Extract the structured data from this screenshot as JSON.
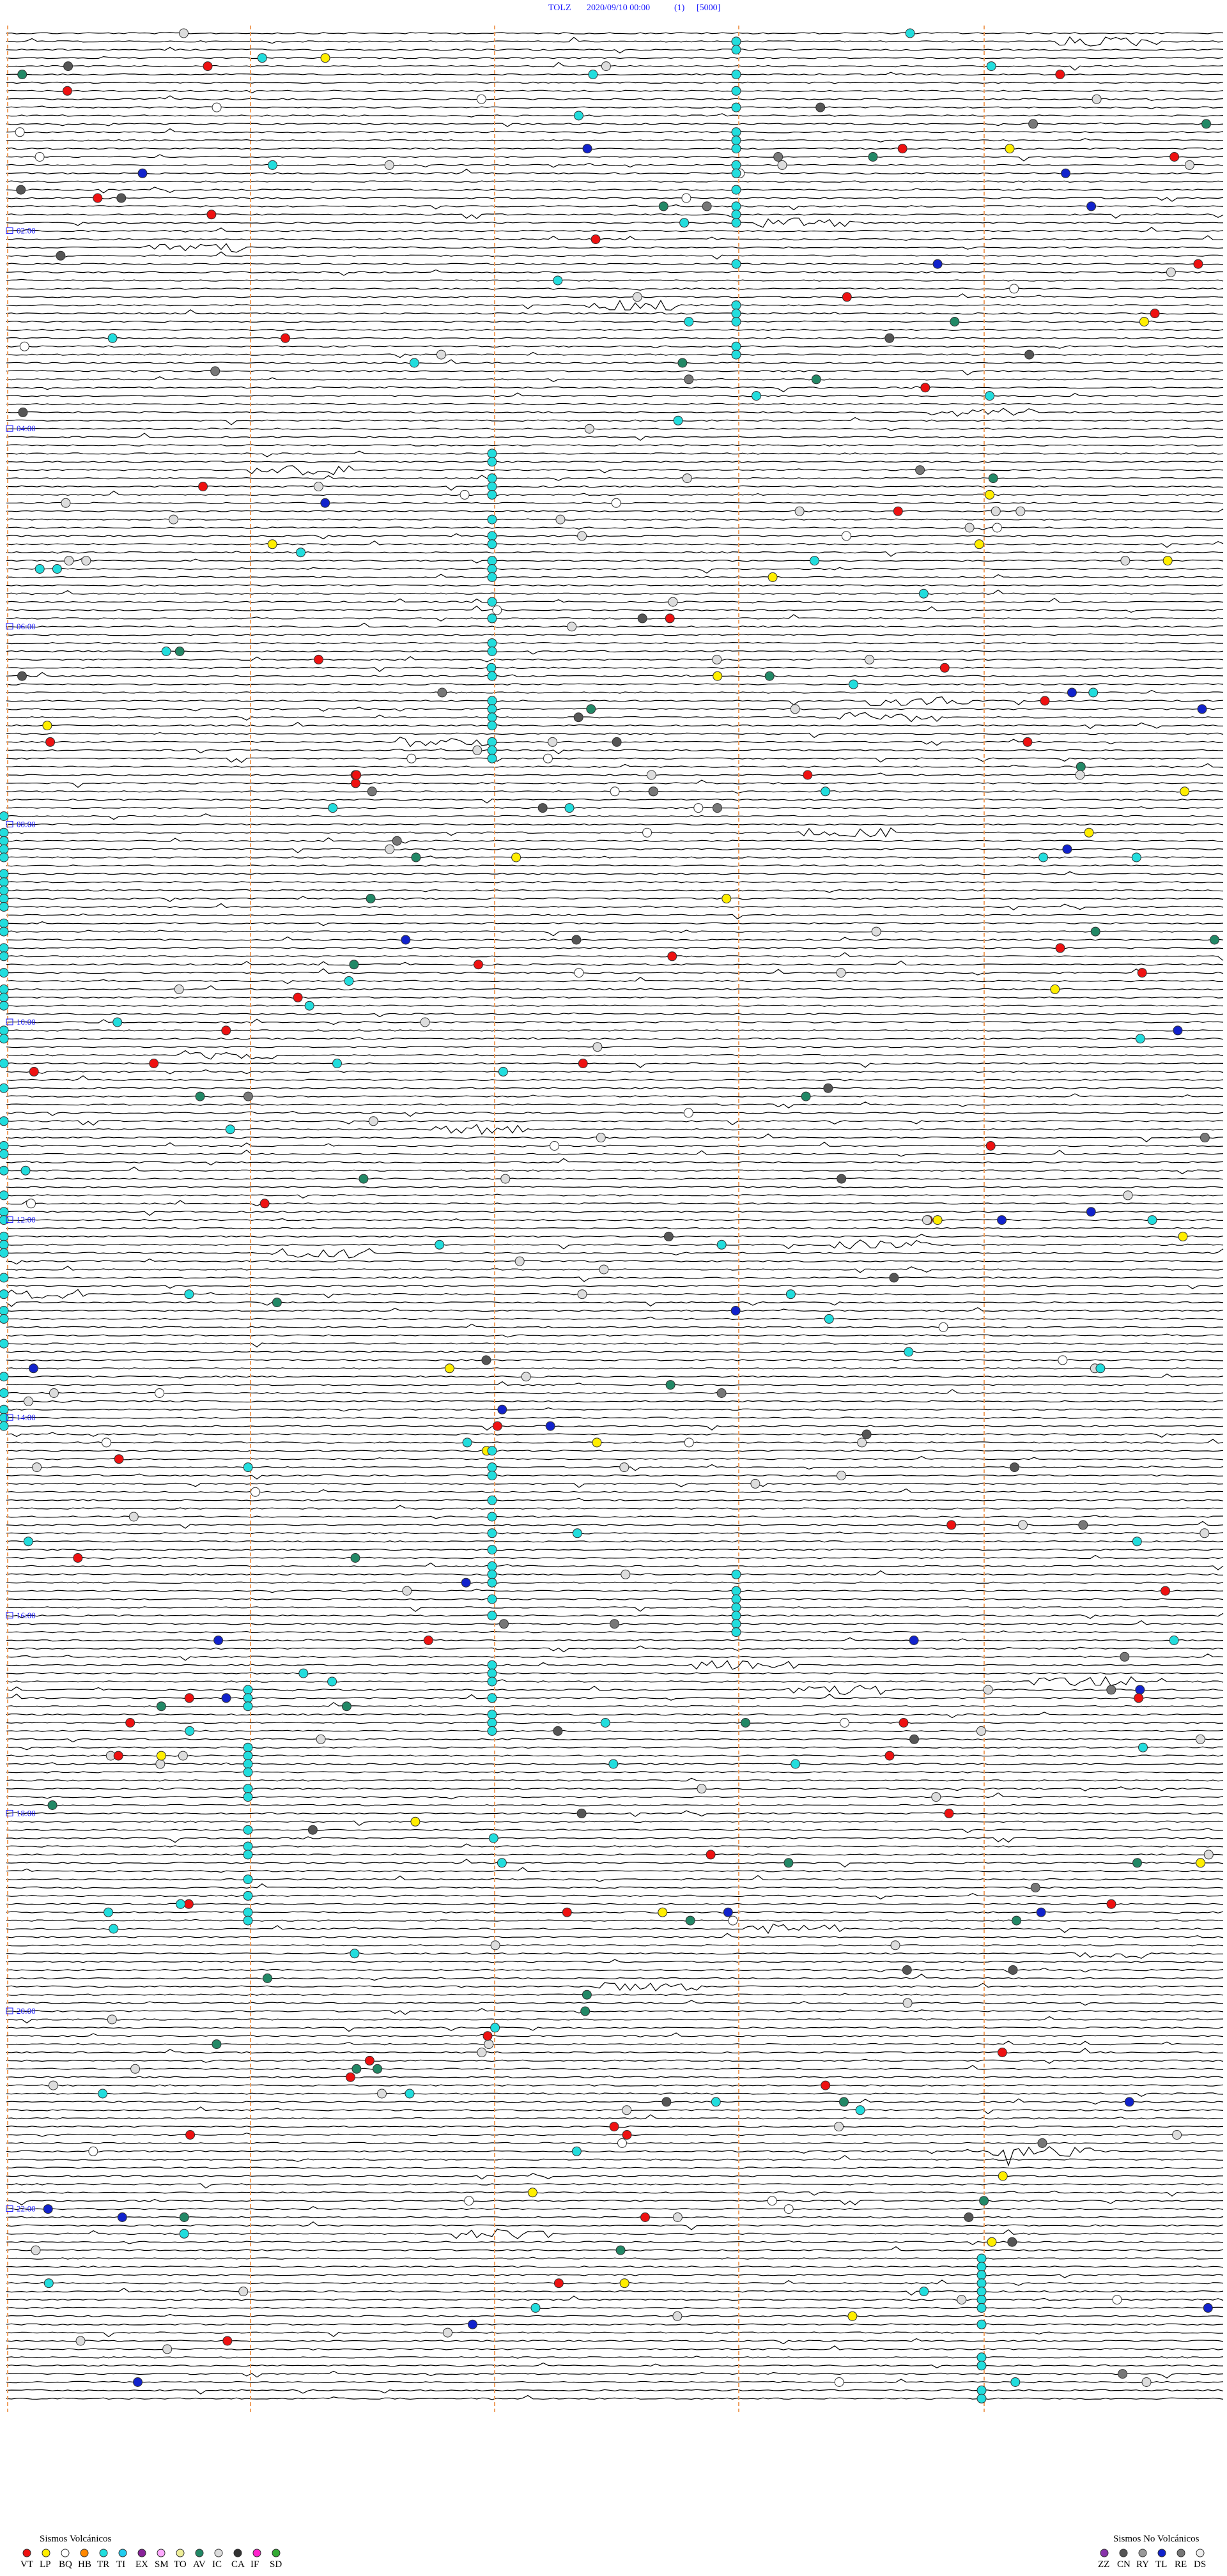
{
  "header": {
    "station": "TOLZ",
    "datetime": "2020/09/10 00:00",
    "channel": "(1)",
    "scale": "[5000]"
  },
  "time_labels": [
    "02:00",
    "04:00",
    "06:00",
    "08:00",
    "10:00",
    "12:00",
    "14:00",
    "16:00",
    "18:00",
    "20:00",
    "22:00"
  ],
  "legend": {
    "volcanic": {
      "title": "Sismos Volcánicos",
      "items": [
        {
          "code": "VT",
          "color": "#ee1111"
        },
        {
          "code": "LP",
          "color": "#ffee00"
        },
        {
          "code": "BQ",
          "color": "#ffffff"
        },
        {
          "code": "HB",
          "color": "#ff8800"
        },
        {
          "code": "TR",
          "color": "#22dddd"
        },
        {
          "code": "TI",
          "color": "#22ccee"
        },
        {
          "code": "EX",
          "color": "#882299"
        },
        {
          "code": "SM",
          "color": "#ffaaff"
        },
        {
          "code": "TO",
          "color": "#eeee99"
        },
        {
          "code": "AV",
          "color": "#228866"
        },
        {
          "code": "IC",
          "color": "#dddddd"
        },
        {
          "code": "CA",
          "color": "#333333"
        },
        {
          "code": "IF",
          "color": "#ff22cc"
        },
        {
          "code": "SD",
          "color": "#33aa33"
        }
      ]
    },
    "non_volcanic": {
      "title": "Sismos No Volcánicos",
      "items": [
        {
          "code": "ZZ",
          "color": "#8833aa"
        },
        {
          "code": "CN",
          "color": "#555555"
        },
        {
          "code": "RY",
          "color": "#999999"
        },
        {
          "code": "TL",
          "color": "#1122cc"
        },
        {
          "code": "RE",
          "color": "#777777"
        },
        {
          "code": "DS",
          "color": "#eeeeee"
        }
      ]
    }
  }
}
